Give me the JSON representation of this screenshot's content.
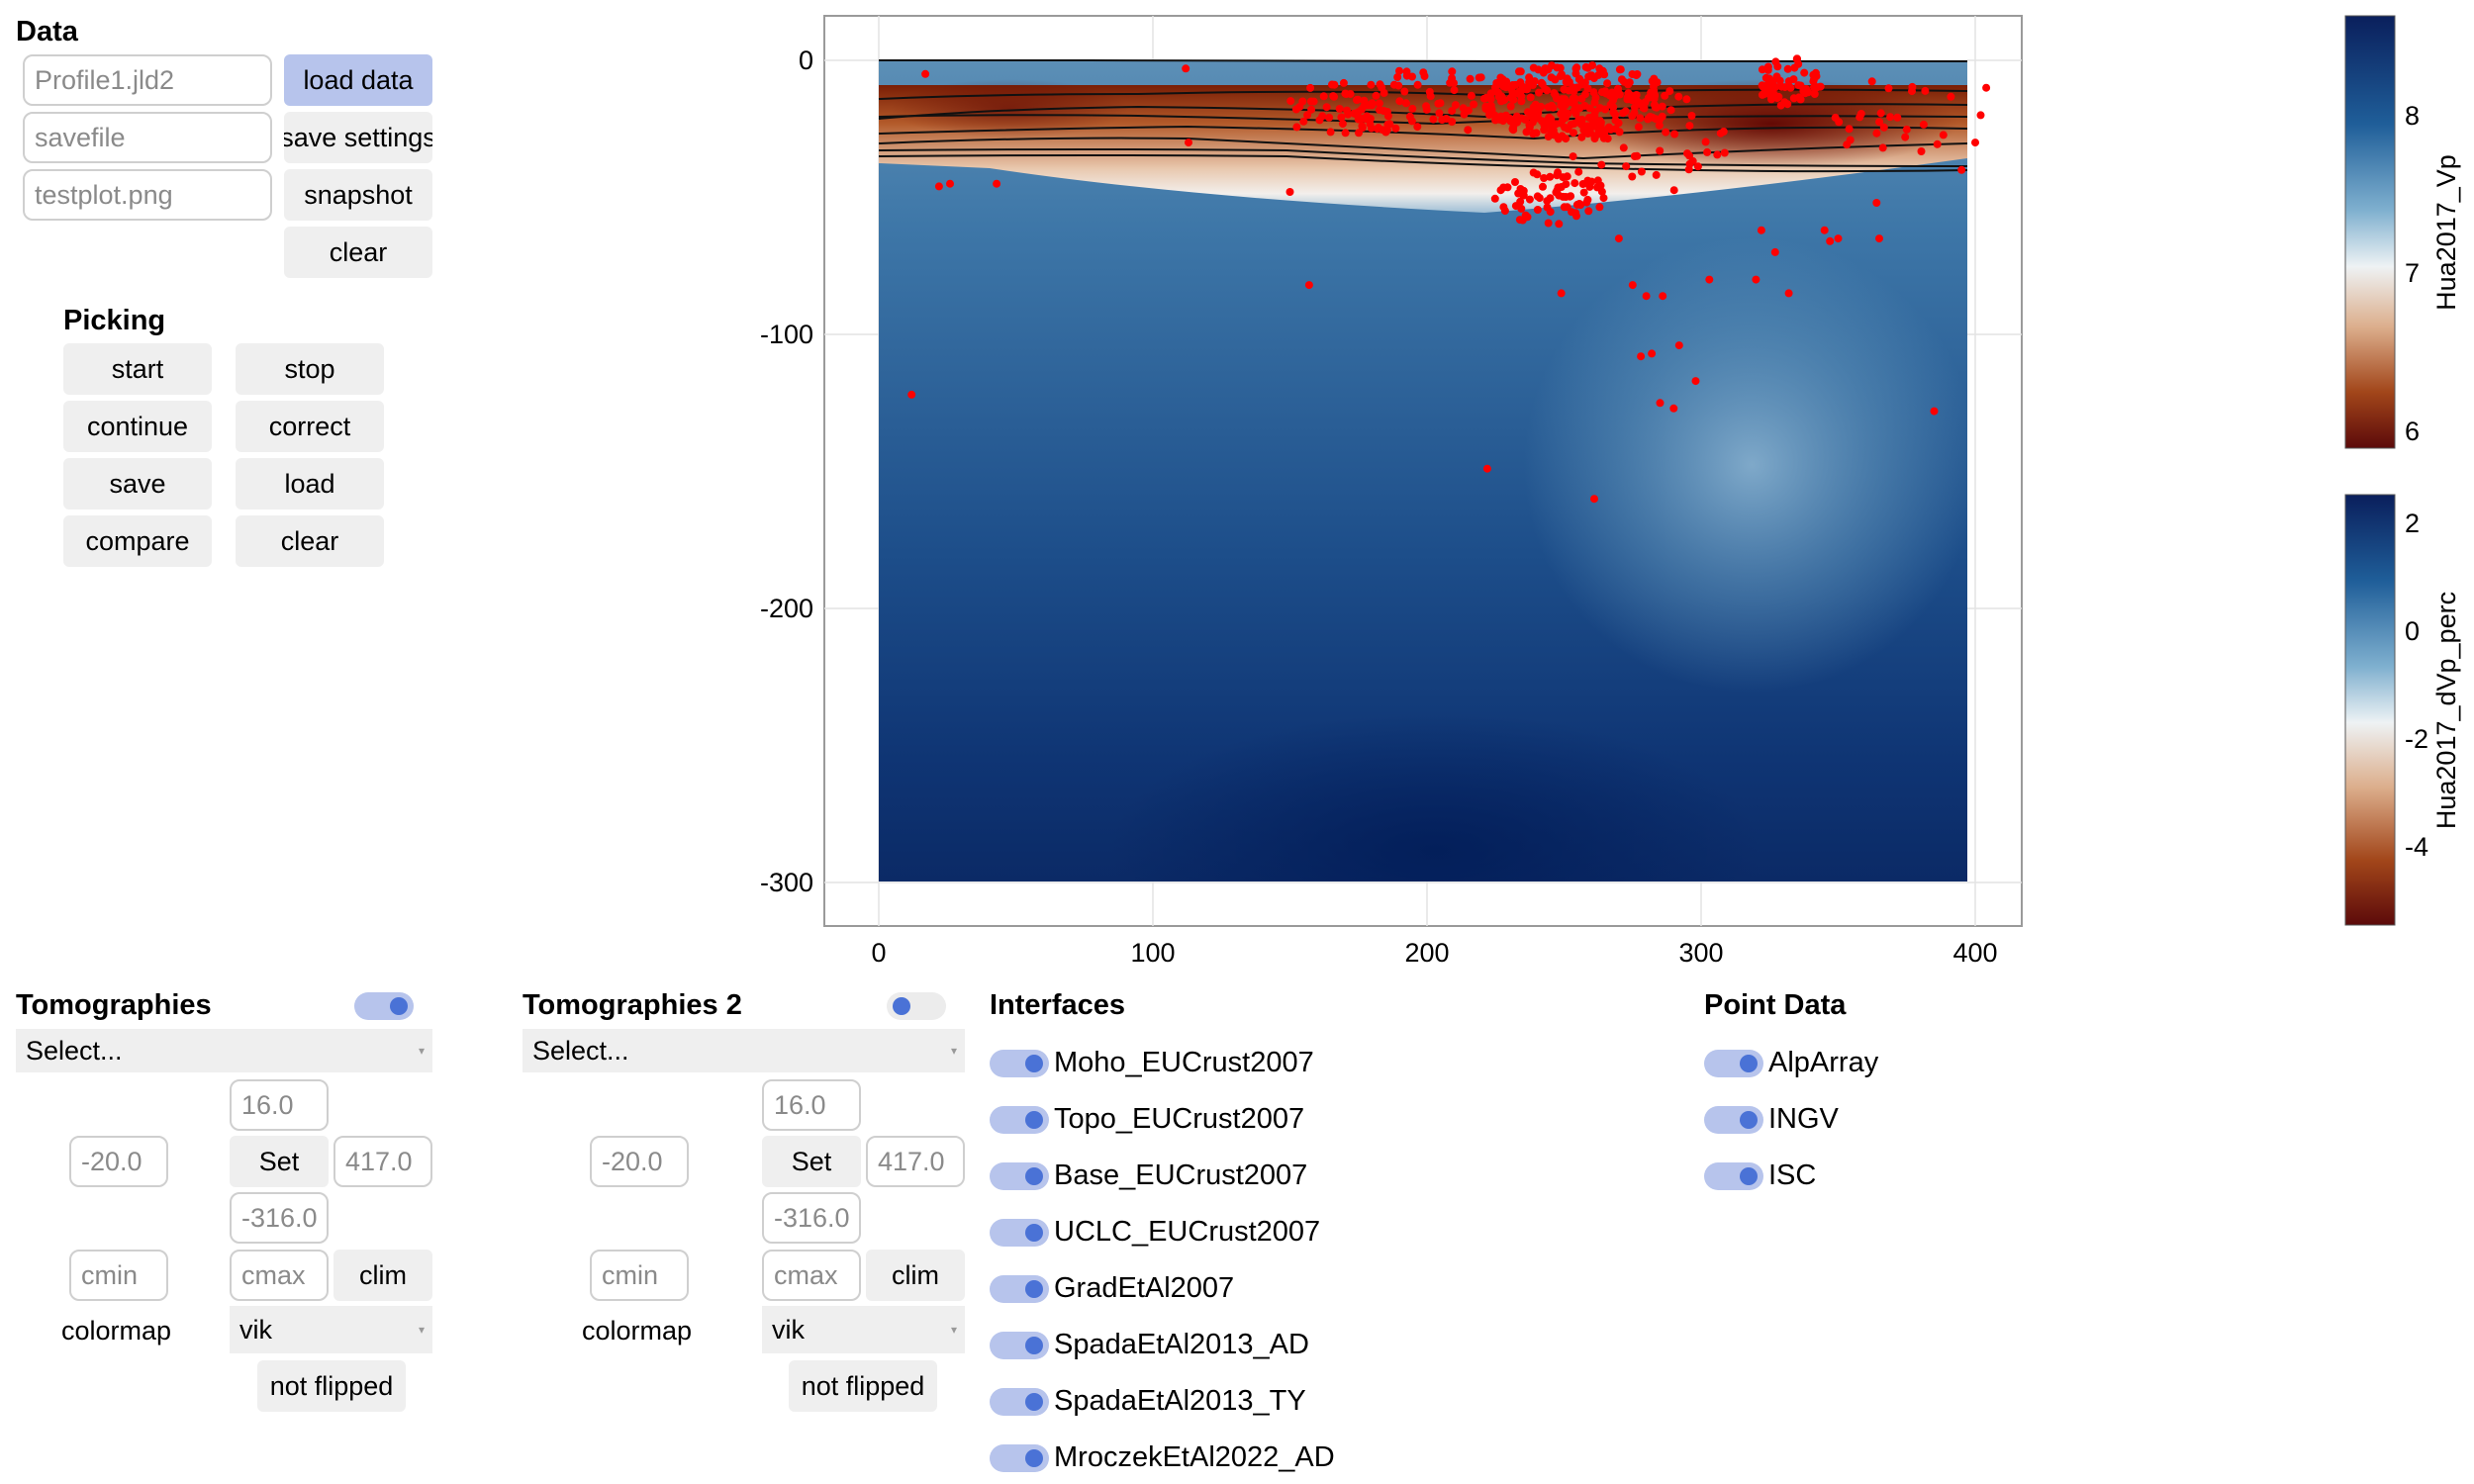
{
  "data_panel": {
    "title": "Data",
    "profile_field": {
      "placeholder": "Profile1.jld2"
    },
    "savefile_field": {
      "placeholder": "savefile"
    },
    "plotfile_field": {
      "placeholder": "testplot.png"
    },
    "load_data": "load data",
    "save_settings": "save settings",
    "snapshot": "snapshot",
    "clear": "clear"
  },
  "picking": {
    "title": "Picking",
    "start": "start",
    "stop": "stop",
    "continue": "continue",
    "correct": "correct",
    "save": "save",
    "load": "load",
    "compare": "compare",
    "clear": "clear"
  },
  "tomographies": {
    "title": "Tomographies",
    "toggle_on": true,
    "select": "Select...",
    "top": "16.0",
    "left": "-20.0",
    "right": "417.0",
    "bottom": "-316.0",
    "set": "Set",
    "cmin_placeholder": "cmin",
    "cmax_placeholder": "cmax",
    "clim": "clim",
    "colormap_label": "colormap",
    "colormap": "vik",
    "flip": "not flipped"
  },
  "tomographies2": {
    "title": "Tomographies 2",
    "toggle_on": false,
    "select": "Select...",
    "top": "16.0",
    "left": "-20.0",
    "right": "417.0",
    "bottom": "-316.0",
    "set": "Set",
    "cmin_placeholder": "cmin",
    "cmax_placeholder": "cmax",
    "clim": "clim",
    "colormap_label": "colormap",
    "colormap": "vik",
    "flip": "not flipped"
  },
  "interfaces": {
    "title": "Interfaces",
    "items": [
      "Moho_EUCrust2007",
      "Topo_EUCrust2007",
      "Base_EUCrust2007",
      "UCLC_EUCrust2007",
      "GradEtAl2007",
      "SpadaEtAl2013_AD",
      "SpadaEtAl2013_TY",
      "MroczekEtAl2022_AD"
    ]
  },
  "point_data": {
    "title": "Point Data",
    "items": [
      "AlpArray",
      "INGV",
      "ISC"
    ]
  },
  "colors": {
    "accent": "#b7c4ec",
    "toggle_knob": "#4a72d6",
    "button_bg": "#efefef",
    "points": "#ff0000"
  },
  "chart_data": [
    {
      "type": "heatmap",
      "xlim": [
        -20,
        417
      ],
      "ylim": [
        -316,
        16
      ],
      "x_ticks": [
        "0",
        "100",
        "200",
        "300",
        "400"
      ],
      "y_ticks": [
        "0",
        "-100",
        "-200",
        "-300"
      ],
      "grid": true,
      "colormap": "vik",
      "data_extent": {
        "x": [
          0,
          397
        ],
        "y": [
          -300,
          0
        ]
      },
      "interfaces_drawn": 8,
      "scatter": {
        "points": [
          [
            12,
            -122
          ],
          [
            17,
            -5
          ],
          [
            22,
            -46
          ],
          [
            26,
            -45
          ],
          [
            43,
            -45
          ],
          [
            112,
            -3
          ],
          [
            113,
            -30
          ],
          [
            150,
            -48
          ],
          [
            157,
            -82
          ],
          [
            222,
            -149
          ],
          [
            261,
            -160
          ],
          [
            249,
            -85
          ],
          [
            270,
            -65
          ],
          [
            275,
            -82
          ],
          [
            280,
            -86
          ],
          [
            286,
            -86
          ],
          [
            278,
            -108
          ],
          [
            282,
            -107
          ],
          [
            285,
            -125
          ],
          [
            290,
            -127
          ],
          [
            292,
            -104
          ],
          [
            298,
            -117
          ],
          [
            303,
            -80
          ],
          [
            320,
            -80
          ],
          [
            322,
            -62
          ],
          [
            327,
            -70
          ],
          [
            332,
            -85
          ],
          [
            345,
            -62
          ],
          [
            347,
            -66
          ],
          [
            350,
            -65
          ],
          [
            364,
            -52
          ],
          [
            365,
            -65
          ],
          [
            385,
            -128
          ],
          [
            395,
            -40
          ],
          [
            400,
            -30
          ],
          [
            402,
            -20
          ],
          [
            404,
            -10
          ],
          [
            338,
            -12
          ],
          [
            354,
            -25
          ]
        ]
      }
    },
    {
      "type": "heatmap",
      "colorbar": true,
      "label": "Hua2017_Vp",
      "range": [
        5.9,
        8.6
      ],
      "ticks": [
        "8",
        "7",
        "6"
      ]
    },
    {
      "type": "heatmap",
      "colorbar": true,
      "label": "Hua2017_dVp_perc",
      "range": [
        -5.4,
        2.5
      ],
      "ticks": [
        "2",
        "0",
        "-2",
        "-4"
      ]
    }
  ]
}
